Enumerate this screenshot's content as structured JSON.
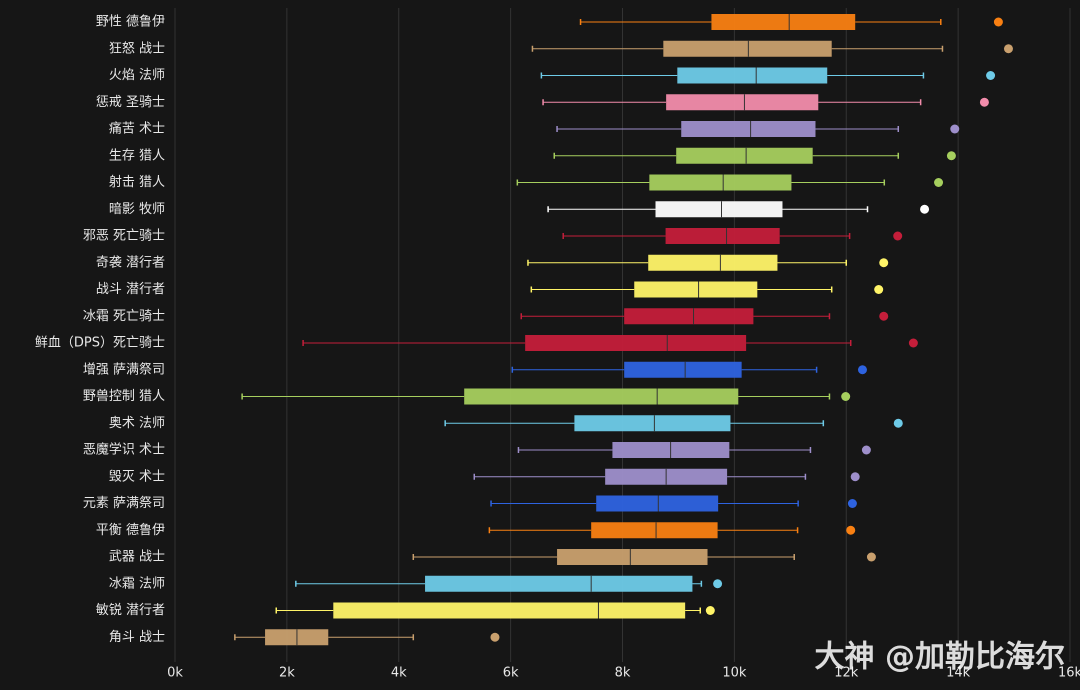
{
  "chart_data": {
    "type": "boxplot",
    "orientation": "horizontal",
    "categories": [
      "野性 德鲁伊",
      "狂怒 战士",
      "火焰 法师",
      "惩戒 圣骑士",
      "痛苦 术士",
      "生存 猎人",
      "射击 猎人",
      "暗影 牧师",
      "邪恶 死亡骑士",
      "奇袭 潜行者",
      "战斗 潜行者",
      "冰霜 死亡骑士",
      "鲜血（DPS）死亡骑士",
      "增强 萨满祭司",
      "野兽控制 猎人",
      "奥术 法师",
      "恶魔学识 术士",
      "毁灭 术士",
      "元素 萨满祭司",
      "平衡 德鲁伊",
      "武器 战士",
      "冰霜 法师",
      "敏锐 潜行者",
      "角斗 战士"
    ],
    "min": [
      7250,
      6390,
      6550,
      6580,
      6830,
      6780,
      6120,
      6670,
      6940,
      6310,
      6370,
      6190,
      2290,
      6030,
      1200,
      4830,
      6140,
      5350,
      5650,
      5620,
      4260,
      2160,
      1810,
      1070
    ],
    "q1": [
      9590,
      8730,
      8980,
      8780,
      9050,
      8960,
      8480,
      8590,
      8770,
      8460,
      8210,
      8030,
      6260,
      8030,
      5170,
      7140,
      7820,
      7690,
      7530,
      7440,
      6830,
      4470,
      2830,
      1610
    ],
    "median": [
      10980,
      10250,
      10390,
      10180,
      10290,
      10210,
      9800,
      9770,
      9860,
      9750,
      9360,
      9270,
      8800,
      9120,
      8620,
      8570,
      8860,
      8780,
      8640,
      8600,
      8140,
      7440,
      7570,
      2180
    ],
    "q3": [
      12160,
      11740,
      11660,
      11500,
      11450,
      11400,
      11020,
      10860,
      10810,
      10770,
      10410,
      10340,
      10210,
      10130,
      10070,
      9930,
      9910,
      9870,
      9710,
      9700,
      9520,
      9250,
      9120,
      2740
    ],
    "max": [
      13690,
      13720,
      13380,
      13330,
      12930,
      12930,
      12680,
      12380,
      12060,
      12000,
      11740,
      11700,
      12080,
      11470,
      11700,
      11590,
      11360,
      11270,
      11140,
      11130,
      11070,
      9410,
      9390,
      4260
    ],
    "outliers": [
      14720,
      14900,
      14580,
      14470,
      13940,
      13880,
      13650,
      13400,
      12920,
      12670,
      12580,
      12670,
      13200,
      12290,
      11990,
      12930,
      12360,
      12160,
      12110,
      12080,
      12450,
      9700,
      9570,
      5720
    ],
    "colors": [
      "#f98012",
      "#c9a06e",
      "#6ecbe8",
      "#f28cab",
      "#9e8fcb",
      "#a6cf5e",
      "#a6cf5e",
      "#ffffff",
      "#c41e3a",
      "#fff468",
      "#fff468",
      "#c41e3a",
      "#c41e3a",
      "#2e63e0",
      "#a6cf5e",
      "#6ecbe8",
      "#9e8fcb",
      "#9e8fcb",
      "#2e63e0",
      "#f98012",
      "#c9a06e",
      "#6ecbe8",
      "#fff468",
      "#c9a06e"
    ],
    "xlim": [
      0,
      16000
    ],
    "xticks": [
      {
        "value": 0,
        "label": "0k"
      },
      {
        "value": 2000,
        "label": "2k"
      },
      {
        "value": 4000,
        "label": "4k"
      },
      {
        "value": 6000,
        "label": "6k"
      },
      {
        "value": 8000,
        "label": "8k"
      },
      {
        "value": 10000,
        "label": "10k"
      },
      {
        "value": 12000,
        "label": "12k"
      },
      {
        "value": 14000,
        "label": "14k"
      },
      {
        "value": 16000,
        "label": "16k"
      }
    ],
    "grid": true,
    "watermark": "大神 @加勒比海尔"
  }
}
